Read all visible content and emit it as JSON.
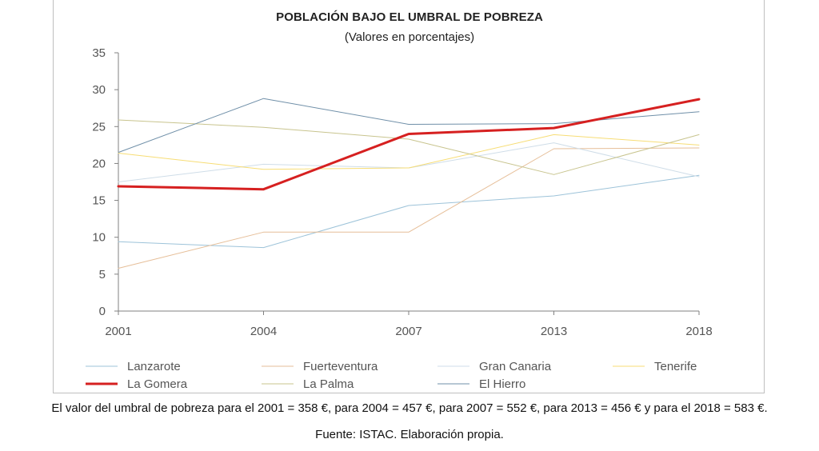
{
  "chart_data": {
    "type": "line",
    "title": "POBLACIÓN BAJO EL UMBRAL DE POBREZA",
    "subtitle": "(Valores en porcentajes)",
    "categories": [
      "2001",
      "2004",
      "2007",
      "2013",
      "2018"
    ],
    "ylim": [
      0,
      35
    ],
    "yticks": [
      0,
      5,
      10,
      15,
      20,
      25,
      30,
      35
    ],
    "grid": false,
    "legend_position": "bottom",
    "series": [
      {
        "name": "Lanzarote",
        "color": "#9dc3d9",
        "width": 1,
        "values": [
          9.4,
          8.6,
          14.3,
          15.6,
          18.4
        ]
      },
      {
        "name": "Fuerteventura",
        "color": "#e6be98",
        "width": 1,
        "values": [
          5.8,
          10.7,
          10.7,
          22.0,
          22.1
        ]
      },
      {
        "name": "Gran Canaria",
        "color": "#cfdde8",
        "width": 1,
        "values": [
          17.5,
          19.9,
          19.4,
          22.8,
          18.2
        ]
      },
      {
        "name": "Tenerife",
        "color": "#f7dd75",
        "width": 1,
        "values": [
          21.4,
          19.2,
          19.4,
          23.9,
          22.5
        ]
      },
      {
        "name": "La Gomera",
        "color": "#d62020",
        "width": 3,
        "values": [
          16.9,
          16.5,
          24.0,
          24.8,
          28.7
        ]
      },
      {
        "name": "La Palma",
        "color": "#c8c48e",
        "width": 1,
        "values": [
          25.9,
          24.9,
          23.3,
          18.5,
          23.9
        ]
      },
      {
        "name": "El Hierro",
        "color": "#6f8fa8",
        "width": 1,
        "values": [
          21.5,
          28.8,
          25.3,
          25.4,
          27.0
        ]
      }
    ]
  },
  "footnote": "El valor del umbral de pobreza para el 2001 = 358 €,  para 2004 = 457 €, para 2007 = 552 €, para 2013 =  456 € y para el 2018 = 583 €.",
  "source": "Fuente: ISTAC. Elaboración propia."
}
